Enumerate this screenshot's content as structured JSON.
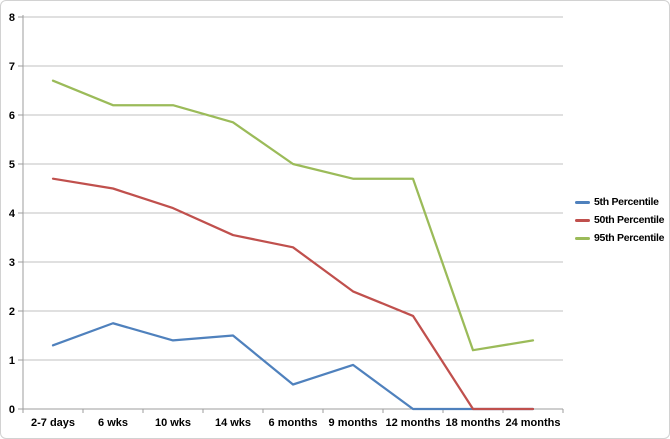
{
  "chart_data": {
    "type": "line",
    "title": "",
    "xlabel": "",
    "ylabel": "",
    "categories": [
      "2-7 days",
      "6 wks",
      "10 wks",
      "14 wks",
      "6 months",
      "9 months",
      "12 months",
      "18 months",
      "24 months"
    ],
    "series": [
      {
        "name": "5th Percentile",
        "color": "#4F81BD",
        "values": [
          1.3,
          1.75,
          1.4,
          1.5,
          0.5,
          0.9,
          0,
          0,
          0
        ]
      },
      {
        "name": "50th Percentile",
        "color": "#C0504D",
        "values": [
          4.7,
          4.5,
          4.1,
          3.55,
          3.3,
          2.4,
          1.9,
          0,
          0
        ]
      },
      {
        "name": "95th Percentile",
        "color": "#9BBB59",
        "values": [
          6.7,
          6.2,
          6.2,
          5.85,
          5.0,
          4.7,
          4.7,
          1.2,
          1.4
        ]
      }
    ],
    "ylim": [
      0,
      8
    ],
    "yticks": [
      0,
      1,
      2,
      3,
      4,
      5,
      6,
      7,
      8
    ],
    "grid": true,
    "legend_position": "right"
  },
  "colors": {
    "background": "#FFFFFF",
    "frame_border": "#D2D2D2",
    "gridline": "#C2C2C2",
    "axis": "#9E9E9E",
    "text": "#000000"
  }
}
